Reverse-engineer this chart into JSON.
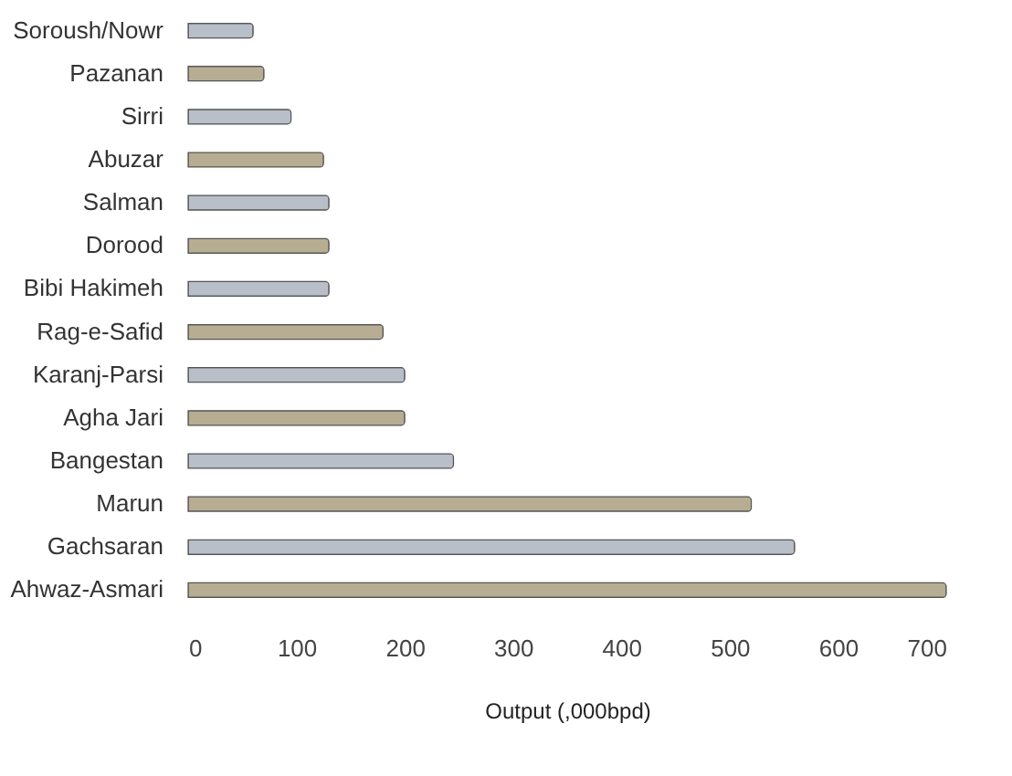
{
  "chart_data": {
    "type": "bar",
    "orientation": "horizontal",
    "xlabel": "Output (,000bpd)",
    "categories": [
      "Soroush/Nowr",
      "Pazanan",
      "Sirri",
      "Abuzar",
      "Salman",
      "Dorood",
      "Bibi Hakimeh",
      "Rag-e-Safid",
      "Karanj-Parsi",
      "Agha Jari",
      "Bangestan",
      "Marun",
      "Gachsaran",
      "Ahwaz-Asmari"
    ],
    "values": [
      60,
      70,
      95,
      125,
      130,
      130,
      130,
      180,
      200,
      200,
      245,
      520,
      560,
      700
    ],
    "colors": [
      "#b9bfc8",
      "#b7ad93",
      "#b9bfc8",
      "#b7ad93",
      "#b9bfc8",
      "#b7ad93",
      "#b9bfc8",
      "#b7ad93",
      "#b9bfc8",
      "#b7ad93",
      "#b9bfc8",
      "#b7ad93",
      "#b9bfc8",
      "#b7ad93"
    ],
    "xlim": [
      0,
      700
    ],
    "xticks": [
      0,
      100,
      200,
      300,
      400,
      500,
      600,
      700
    ],
    "grid": false
  }
}
